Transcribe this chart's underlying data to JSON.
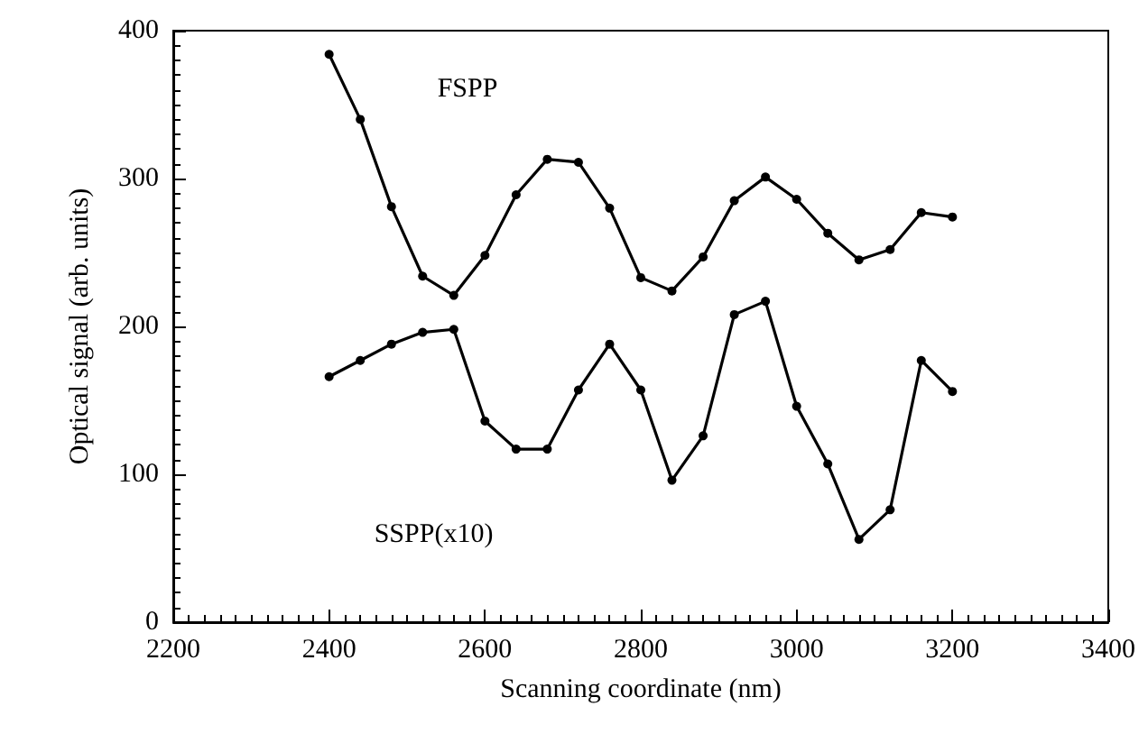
{
  "chart_data": {
    "type": "line",
    "xlabel": "Scanning coordinate (nm)",
    "ylabel": "Optical signal (arb. units)",
    "x": [
      2400,
      2440,
      2480,
      2520,
      2560,
      2600,
      2640,
      2680,
      2720,
      2760,
      2800,
      2840,
      2880,
      2920,
      2960,
      3000,
      3040,
      3080,
      3120,
      3160,
      3200
    ],
    "series": [
      {
        "name": "FSPP",
        "color": "#000000",
        "values": [
          384,
          340,
          281,
          234,
          221,
          248,
          289,
          313,
          311,
          280,
          233,
          224,
          247,
          285,
          301,
          286,
          263,
          245,
          252,
          277,
          274
        ]
      },
      {
        "name": "SSPP(x10)",
        "color": "#000000",
        "values": [
          166,
          177,
          188,
          196,
          198,
          136,
          117,
          117,
          157,
          188,
          157,
          96,
          126,
          208,
          217,
          146,
          107,
          56,
          76,
          177,
          156
        ]
      }
    ],
    "xlim": [
      2200,
      3400
    ],
    "xticks": [
      2200,
      2400,
      2600,
      2800,
      3000,
      3200,
      3400
    ],
    "ylim": [
      0,
      400
    ],
    "yticks": [
      0,
      100,
      200,
      300,
      400
    ],
    "grid": false,
    "legend": false,
    "marker": "circle",
    "line_style": "solid"
  }
}
